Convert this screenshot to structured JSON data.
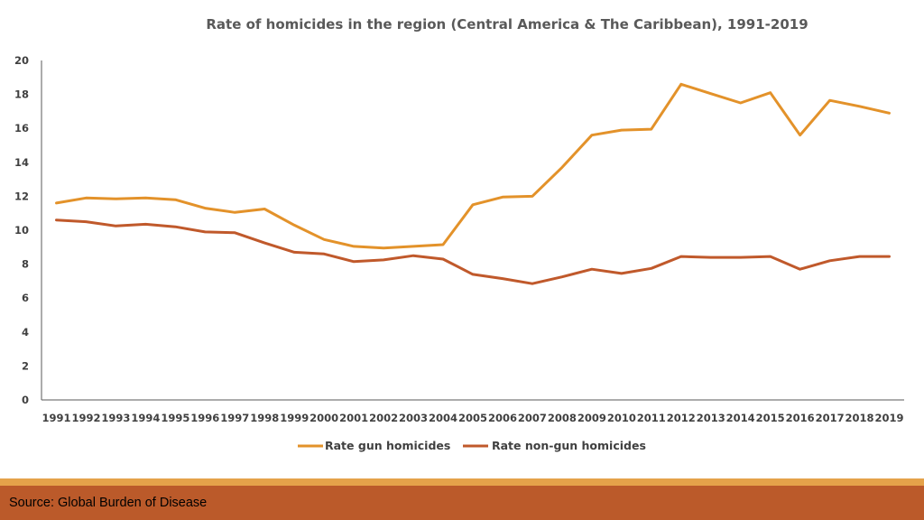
{
  "chart_data": {
    "type": "line",
    "title": "Rate of homicides in the region (Central America & The Caribbean), 1991-2019",
    "xlabel": "",
    "ylabel": "",
    "ylim": [
      0,
      20
    ],
    "yticks": [
      0,
      2,
      4,
      6,
      8,
      10,
      12,
      14,
      16,
      18,
      20
    ],
    "grid": false,
    "legend_position": "bottom",
    "x": [
      "1991",
      "1992",
      "1993",
      "1994",
      "1995",
      "1996",
      "1997",
      "1998",
      "1999",
      "2000",
      "2001",
      "2002",
      "2003",
      "2004",
      "2005",
      "2006",
      "2007",
      "2008",
      "2009",
      "2010",
      "2011",
      "2012",
      "2013",
      "2014",
      "2015",
      "2016",
      "2017",
      "2018",
      "2019"
    ],
    "series": [
      {
        "name": "Rate gun homicides",
        "color": "#e3922a",
        "values": [
          11.6,
          11.9,
          11.85,
          11.9,
          11.8,
          11.3,
          11.05,
          11.25,
          10.3,
          9.45,
          9.05,
          8.95,
          9.05,
          9.15,
          11.5,
          11.95,
          12.0,
          13.7,
          15.6,
          15.9,
          15.95,
          18.6,
          18.05,
          17.5,
          18.1,
          15.6,
          17.65,
          17.3,
          16.9
        ]
      },
      {
        "name": "Rate non-gun homicides",
        "color": "#c0592b",
        "values": [
          10.6,
          10.5,
          10.25,
          10.35,
          10.2,
          9.9,
          9.85,
          9.25,
          8.7,
          8.6,
          8.15,
          8.25,
          8.5,
          8.3,
          7.4,
          7.15,
          6.85,
          7.25,
          7.7,
          7.45,
          7.75,
          8.45,
          8.4,
          8.4,
          8.45,
          7.7,
          8.2,
          8.45,
          8.45
        ]
      }
    ]
  },
  "footer": {
    "source": "Source: Global Burden of Disease"
  }
}
